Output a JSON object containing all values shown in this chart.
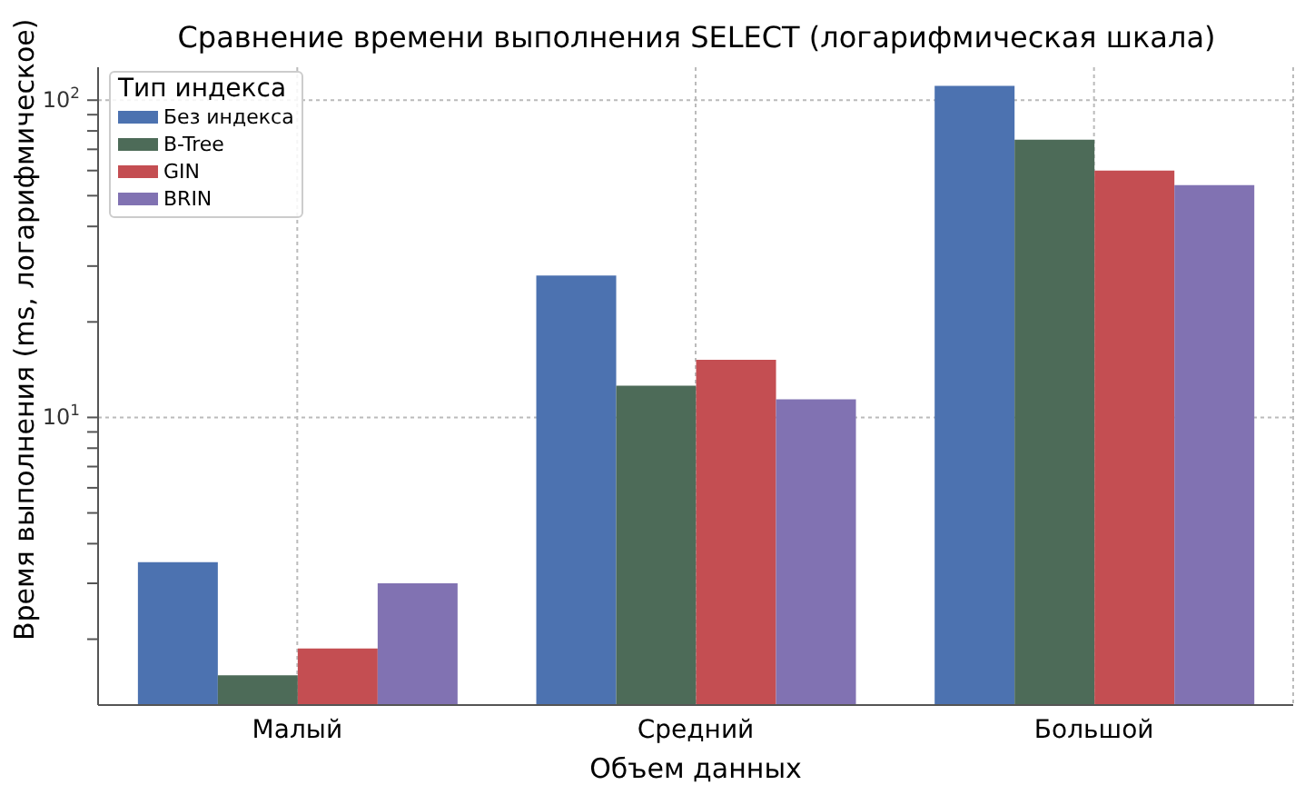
{
  "chart_data": {
    "type": "bar",
    "title": "Сравнение времени выполнения SELECT (логарифмическая шкала)",
    "xlabel": "Объем данных",
    "ylabel": "Время выполнения (ms, логарифмическое)",
    "legend_title": "Тип индекса",
    "categories": [
      "Малый",
      "Средний",
      "Большой"
    ],
    "series": [
      {
        "name": "Без индекса",
        "color": "#4c72b0",
        "values": [
          3.5,
          28,
          111
        ]
      },
      {
        "name": "B-Tree",
        "color": "#4d6b58",
        "values": [
          1.54,
          12.6,
          75
        ]
      },
      {
        "name": "GIN",
        "color": "#c44e52",
        "values": [
          1.87,
          15.2,
          60
        ]
      },
      {
        "name": "BRIN",
        "color": "#8172b2",
        "values": [
          3.0,
          11.4,
          54
        ]
      }
    ],
    "log": "y",
    "ylim": [
      1.24,
      127
    ],
    "yticks": [
      {
        "value": 2,
        "label": null
      },
      {
        "value": 3,
        "label": null
      },
      {
        "value": 4,
        "label": null
      },
      {
        "value": 5,
        "label": null
      },
      {
        "value": 6,
        "label": null
      },
      {
        "value": 7,
        "label": null
      },
      {
        "value": 8,
        "label": null
      },
      {
        "value": 9,
        "label": null
      },
      {
        "value": 10,
        "label": "10$^{1}$"
      },
      {
        "value": 20,
        "label": null
      },
      {
        "value": 30,
        "label": null
      },
      {
        "value": 40,
        "label": null
      },
      {
        "value": 50,
        "label": null
      },
      {
        "value": 60,
        "label": null
      },
      {
        "value": 70,
        "label": null
      },
      {
        "value": 80,
        "label": null
      },
      {
        "value": 90,
        "label": null
      },
      {
        "value": 100,
        "label": "10$^{2}$"
      }
    ],
    "grid": true,
    "legend": "top left"
  }
}
